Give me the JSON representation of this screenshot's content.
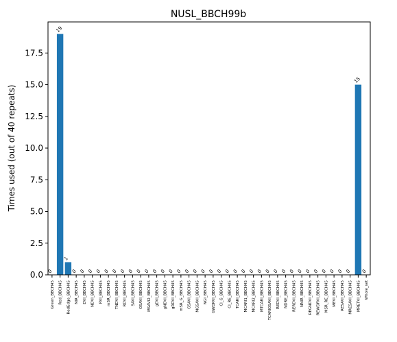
{
  "chart_data": {
    "type": "bar",
    "title": "NUSL_BBCH99b",
    "xlabel": "",
    "ylabel": "Times used (out of 40 repeats)",
    "ylim": [
      0,
      19.95
    ],
    "yticks": [
      0.0,
      2.5,
      5.0,
      7.5,
      10.0,
      12.5,
      15.0,
      17.5
    ],
    "ytick_labels": [
      "0.0",
      "2.5",
      "5.0",
      "7.5",
      "10.0",
      "12.5",
      "15.0",
      "17.5"
    ],
    "bar_color": "#1f77b4",
    "grid": false,
    "legend": "none",
    "categories": [
      "Green_BBCH45",
      "Red_BBCH45",
      "RedEdge_BBCH45",
      "NIR_BBCH45",
      "DVI_BBCH45",
      "NDVI_BBCH45",
      "RVI_BBCH45",
      "mSR_BBCH45",
      "TNDVI_BBCH45",
      "RDVI_BBCH45",
      "SAVI_BBCH45",
      "OSAVI_BBCH45",
      "MSAVI2_BBCH45",
      "gDVI_BBCH45",
      "gNDVI_BBCH45",
      "gRDVI_BBCH45",
      "mSR_G_BBCH45",
      "GSAVI_BBCH45",
      "MGSAVI_BBCH45",
      "NGI_BBCH45",
      "GWDRVI_BBCH45",
      "CI_G_BBCH45",
      "CI_RE_BBCH45",
      "TCARI_BBCH45",
      "MCARI1_BBCH45",
      "MCARI2_BBCH45",
      "MTCARI_BBCH45",
      "TCARIOSAVI_BBCH45",
      "REDVI_BBCH45",
      "NDRE_BBCH45",
      "RERDVI_BBCH45",
      "NNIR_BBCH45",
      "REGNDVI_BBCH45",
      "REWDRVI_BBCH45",
      "MSR_RE_BBCH45",
      "MEVI_BBCH45",
      "RESAVI_BBCH45",
      "MRESAVI_BBCH45",
      "MRETVI_BBCH45",
      "Whole_set"
    ],
    "values": [
      0,
      19,
      1,
      0,
      0,
      0,
      0,
      0,
      0,
      0,
      0,
      0,
      0,
      0,
      0,
      0,
      0,
      0,
      0,
      0,
      0,
      0,
      0,
      0,
      0,
      0,
      0,
      0,
      0,
      0,
      0,
      0,
      0,
      0,
      0,
      0,
      0,
      0,
      15,
      null
    ],
    "value_labels": [
      "0",
      "19",
      "1",
      "0",
      "0",
      "0",
      "0",
      "0",
      "0",
      "0",
      "0",
      "0",
      "0",
      "0",
      "0",
      "0",
      "0",
      "0",
      "0",
      "0",
      "0",
      "0",
      "0",
      "0",
      "0",
      "0",
      "0",
      "0",
      "0",
      "0",
      "0",
      "0",
      "0",
      "0",
      "0",
      "0",
      "0",
      "0",
      "15",
      "0"
    ]
  }
}
